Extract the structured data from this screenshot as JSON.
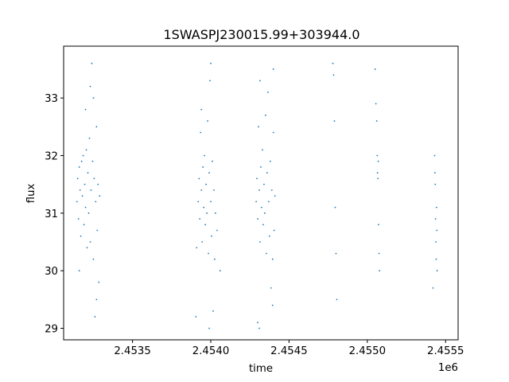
{
  "chart_data": {
    "type": "scatter",
    "title": "1SWASPJ230015.99+303944.0",
    "xlabel": "time",
    "ylabel": "flux",
    "x_offset_label": "1e6",
    "xlim": [
      2453060,
      2455580
    ],
    "ylim": [
      28.8,
      33.9
    ],
    "x_ticks": [
      2.4535,
      2.454,
      2.4545,
      2.455,
      2.4555
    ],
    "x_tick_labels": [
      "2.4535",
      "2.4540",
      "2.4545",
      "2.4550",
      "2.4555"
    ],
    "y_ticks": [
      29,
      30,
      31,
      32,
      33
    ],
    "y_tick_labels": [
      "29",
      "30",
      "31",
      "32",
      "33"
    ],
    "grid": false,
    "marker_color": "#1f77b4",
    "marker": "small point",
    "series": [
      {
        "points": [
          [
            2453145,
            31.2
          ],
          [
            2453150,
            31.6
          ],
          [
            2453155,
            30.9
          ],
          [
            2453160,
            31.8
          ],
          [
            2453165,
            31.4
          ],
          [
            2453170,
            30.6
          ],
          [
            2453175,
            31.9
          ],
          [
            2453180,
            31.3
          ],
          [
            2453185,
            32.0
          ],
          [
            2453190,
            30.8
          ],
          [
            2453195,
            31.5
          ],
          [
            2453200,
            31.1
          ],
          [
            2453205,
            32.1
          ],
          [
            2453210,
            30.4
          ],
          [
            2453215,
            31.7
          ],
          [
            2453220,
            31.0
          ],
          [
            2453225,
            32.3
          ],
          [
            2453230,
            30.5
          ],
          [
            2453235,
            31.4
          ],
          [
            2453240,
            33.6
          ],
          [
            2453245,
            31.9
          ],
          [
            2453250,
            30.2
          ],
          [
            2453255,
            31.6
          ],
          [
            2453260,
            29.2
          ],
          [
            2453265,
            31.2
          ],
          [
            2453270,
            32.5
          ],
          [
            2453275,
            30.7
          ],
          [
            2453280,
            31.5
          ],
          [
            2453285,
            29.8
          ],
          [
            2453290,
            31.3
          ],
          [
            2453160,
            30.0
          ],
          [
            2453200,
            32.8
          ],
          [
            2453230,
            33.2
          ],
          [
            2453270,
            29.5
          ],
          [
            2453250,
            33.0
          ]
        ]
      },
      {
        "points": [
          [
            2453920,
            31.2
          ],
          [
            2453925,
            31.6
          ],
          [
            2453930,
            30.9
          ],
          [
            2453935,
            32.4
          ],
          [
            2453940,
            31.4
          ],
          [
            2453945,
            30.5
          ],
          [
            2453950,
            31.8
          ],
          [
            2453955,
            31.1
          ],
          [
            2453960,
            32.0
          ],
          [
            2453965,
            30.8
          ],
          [
            2453970,
            31.5
          ],
          [
            2453975,
            31.0
          ],
          [
            2453980,
            32.6
          ],
          [
            2453985,
            30.3
          ],
          [
            2453990,
            31.7
          ],
          [
            2453995,
            33.3
          ],
          [
            2454000,
            31.2
          ],
          [
            2454005,
            30.6
          ],
          [
            2454010,
            31.9
          ],
          [
            2454015,
            29.3
          ],
          [
            2454020,
            31.4
          ],
          [
            2454025,
            30.2
          ],
          [
            2454030,
            31.0
          ],
          [
            2454040,
            30.7
          ],
          [
            2454060,
            30.0
          ],
          [
            2453905,
            29.2
          ],
          [
            2453910,
            30.4
          ],
          [
            2453990,
            29.0
          ],
          [
            2454000,
            33.6
          ],
          [
            2453940,
            32.8
          ]
        ]
      },
      {
        "points": [
          [
            2454290,
            31.2
          ],
          [
            2454295,
            31.6
          ],
          [
            2454300,
            30.9
          ],
          [
            2454305,
            32.5
          ],
          [
            2454310,
            31.4
          ],
          [
            2454315,
            30.5
          ],
          [
            2454320,
            31.8
          ],
          [
            2454325,
            31.1
          ],
          [
            2454330,
            32.1
          ],
          [
            2454335,
            30.8
          ],
          [
            2454340,
            31.5
          ],
          [
            2454345,
            31.0
          ],
          [
            2454350,
            32.7
          ],
          [
            2454355,
            30.3
          ],
          [
            2454360,
            31.7
          ],
          [
            2454365,
            33.1
          ],
          [
            2454370,
            31.2
          ],
          [
            2454375,
            30.6
          ],
          [
            2454380,
            31.9
          ],
          [
            2454385,
            29.7
          ],
          [
            2454390,
            31.4
          ],
          [
            2454395,
            30.2
          ],
          [
            2454400,
            32.4
          ],
          [
            2454405,
            30.7
          ],
          [
            2454410,
            31.3
          ],
          [
            2454300,
            29.1
          ],
          [
            2454310,
            29.0
          ],
          [
            2454315,
            33.3
          ],
          [
            2454400,
            33.5
          ],
          [
            2454395,
            29.4
          ]
        ]
      },
      {
        "points": [
          [
            2454780,
            33.6
          ],
          [
            2454785,
            33.4
          ],
          [
            2454790,
            32.6
          ],
          [
            2454795,
            31.1
          ],
          [
            2454800,
            30.3
          ],
          [
            2454805,
            29.5
          ]
        ]
      },
      {
        "points": [
          [
            2455050,
            33.5
          ],
          [
            2455055,
            32.9
          ],
          [
            2455060,
            32.6
          ],
          [
            2455063,
            32.0
          ],
          [
            2455065,
            31.7
          ],
          [
            2455068,
            31.6
          ],
          [
            2455070,
            31.9
          ],
          [
            2455072,
            30.8
          ],
          [
            2455075,
            30.3
          ],
          [
            2455078,
            30.0
          ]
        ]
      },
      {
        "points": [
          [
            2455420,
            29.7
          ],
          [
            2455430,
            32.0
          ],
          [
            2455432,
            31.7
          ],
          [
            2455434,
            31.5
          ],
          [
            2455436,
            30.9
          ],
          [
            2455438,
            30.5
          ],
          [
            2455440,
            30.2
          ],
          [
            2455442,
            31.1
          ],
          [
            2455444,
            30.7
          ],
          [
            2455446,
            30.0
          ]
        ]
      }
    ]
  }
}
